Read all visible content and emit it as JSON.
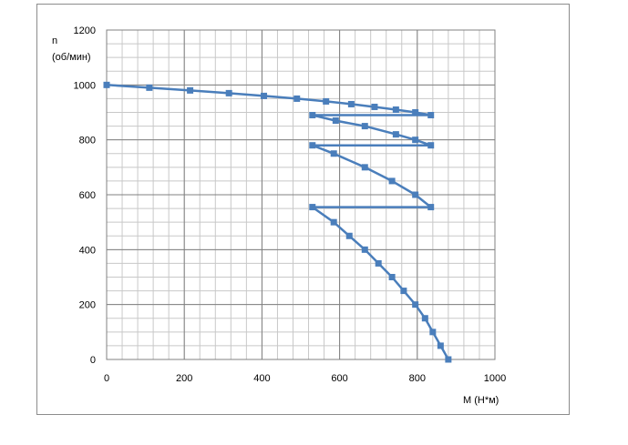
{
  "chart_data": {
    "type": "line",
    "title": "",
    "xlabel": "M (Н*м)",
    "ylabel_lines": [
      "n",
      "(об/мин)"
    ],
    "xlim": [
      0,
      1000
    ],
    "ylim": [
      0,
      1200
    ],
    "x_ticks": [
      0,
      200,
      400,
      600,
      800,
      1000
    ],
    "y_ticks": [
      0,
      200,
      400,
      600,
      800,
      1000,
      1200
    ],
    "x_tick_labels": [
      "0",
      "200",
      "400",
      "600",
      "800",
      "1000"
    ],
    "y_tick_labels": [
      "0",
      "200",
      "400",
      "600",
      "800",
      "1000",
      "1200"
    ],
    "grid": true,
    "legend": "none",
    "series": [
      {
        "color": "#4a7ebb",
        "points": [
          [
            0,
            1000
          ],
          [
            110,
            990
          ],
          [
            215,
            980
          ],
          [
            315,
            970
          ],
          [
            405,
            960
          ],
          [
            490,
            950
          ],
          [
            565,
            940
          ],
          [
            630,
            930
          ],
          [
            690,
            920
          ],
          [
            745,
            910
          ],
          [
            795,
            900
          ],
          [
            835,
            890
          ],
          [
            530,
            890
          ],
          [
            590,
            870
          ],
          [
            665,
            850
          ],
          [
            745,
            820
          ],
          [
            795,
            800
          ],
          [
            835,
            780
          ],
          [
            530,
            780
          ],
          [
            585,
            750
          ],
          [
            665,
            700
          ],
          [
            735,
            650
          ],
          [
            795,
            600
          ],
          [
            835,
            555
          ],
          [
            530,
            555
          ],
          [
            585,
            500
          ],
          [
            625,
            450
          ],
          [
            665,
            400
          ],
          [
            700,
            350
          ],
          [
            735,
            300
          ],
          [
            765,
            250
          ],
          [
            795,
            200
          ],
          [
            820,
            150
          ],
          [
            840,
            100
          ],
          [
            860,
            50
          ],
          [
            880,
            0
          ]
        ],
        "marker_points": [
          [
            0,
            1000
          ],
          [
            110,
            990
          ],
          [
            215,
            980
          ],
          [
            315,
            970
          ],
          [
            405,
            960
          ],
          [
            490,
            950
          ],
          [
            565,
            940
          ],
          [
            630,
            930
          ],
          [
            690,
            920
          ],
          [
            745,
            910
          ],
          [
            795,
            900
          ],
          [
            835,
            890
          ],
          [
            530,
            890
          ],
          [
            590,
            870
          ],
          [
            665,
            850
          ],
          [
            745,
            820
          ],
          [
            795,
            800
          ],
          [
            835,
            780
          ],
          [
            530,
            780
          ],
          [
            585,
            750
          ],
          [
            665,
            700
          ],
          [
            735,
            650
          ],
          [
            795,
            600
          ],
          [
            835,
            555
          ],
          [
            530,
            555
          ],
          [
            585,
            500
          ],
          [
            625,
            450
          ],
          [
            665,
            400
          ],
          [
            700,
            350
          ],
          [
            735,
            300
          ],
          [
            765,
            250
          ],
          [
            795,
            200
          ],
          [
            820,
            150
          ],
          [
            840,
            100
          ],
          [
            860,
            50
          ],
          [
            880,
            0
          ]
        ]
      }
    ]
  }
}
